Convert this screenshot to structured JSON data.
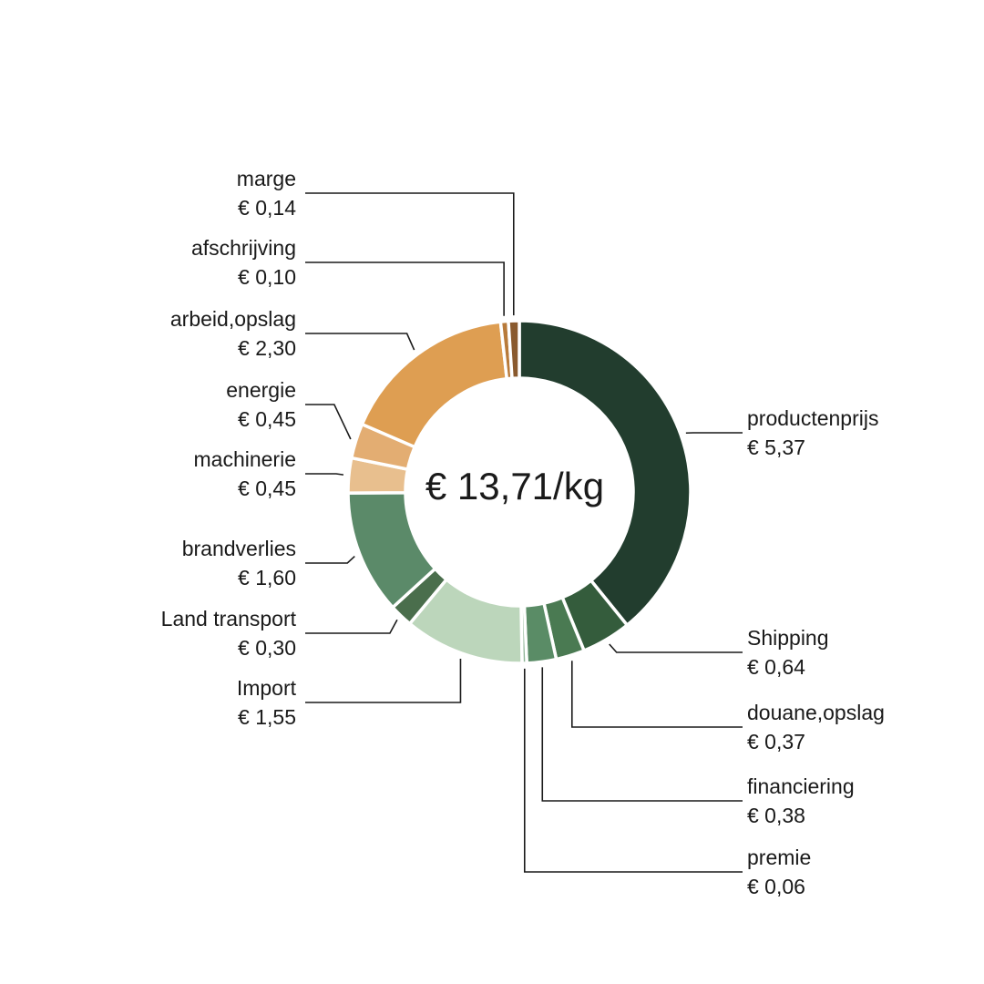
{
  "chart_data": {
    "type": "pie",
    "center_label": "€ 13,71/kg",
    "categories": [
      "productenprijs",
      "Shipping",
      "douane,opslag",
      "financiering",
      "premie",
      "Import",
      "Land transport",
      "brandverlies",
      "machinerie",
      "energie",
      "arbeid,opslag",
      "afschrijving",
      "marge"
    ],
    "values": [
      5.37,
      0.64,
      0.37,
      0.38,
      0.06,
      1.55,
      0.3,
      1.6,
      0.45,
      0.45,
      2.3,
      0.1,
      0.14
    ],
    "value_labels": [
      "€ 5,37",
      "€ 0,64",
      "€ 0,37",
      "€ 0,38",
      "€ 0,06",
      "€ 1,55",
      "€ 0,30",
      "€ 1,60",
      "€ 0,45",
      "€ 0,45",
      "€ 2,30",
      "€ 0,10",
      "€ 0,14"
    ],
    "colors": [
      "#223d2e",
      "#345c3c",
      "#4a7a52",
      "#5a8c66",
      "#8fb597",
      "#bcd6bb",
      "#4a6e4c",
      "#5b8a69",
      "#e8bf8e",
      "#e3ad72",
      "#de9e52",
      "#b87a3a",
      "#8a5a2e"
    ]
  }
}
